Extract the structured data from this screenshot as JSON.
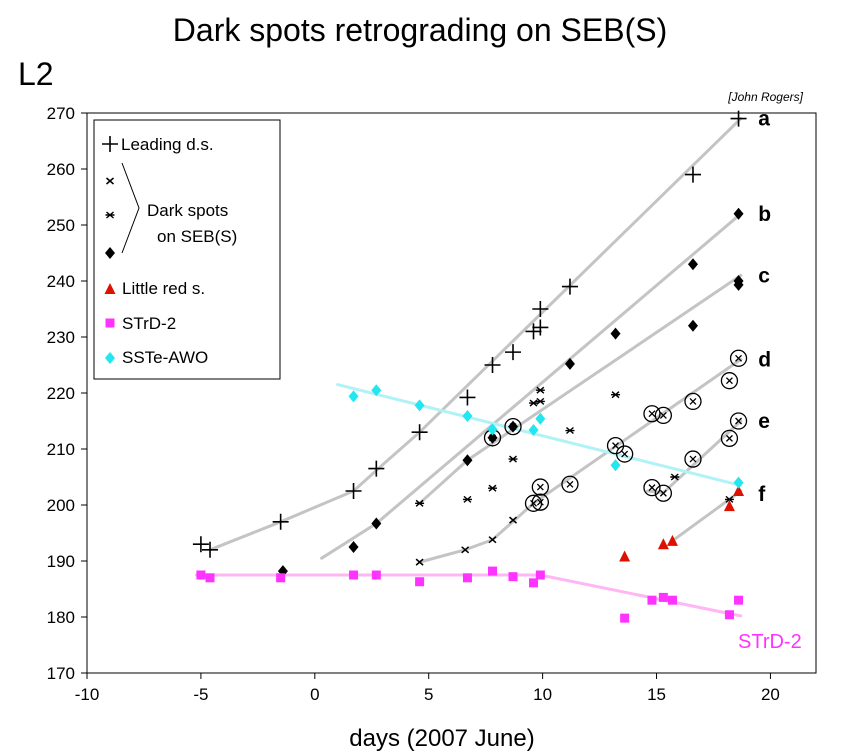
{
  "chart_data": {
    "type": "scatter",
    "title": "Dark spots retrograding on SEB(S)",
    "ylabel_corner": "L2",
    "xlabel": "days (2007 June)",
    "credit": "[John Rogers]",
    "xlim": [
      -10,
      22
    ],
    "ylim": [
      170,
      270
    ],
    "xticks": [
      -10,
      -5,
      0,
      5,
      10,
      15,
      20
    ],
    "yticks": [
      170,
      180,
      190,
      200,
      210,
      220,
      230,
      240,
      250,
      260,
      270
    ],
    "grid": false,
    "legend_position": "top-left",
    "legend": {
      "leading": "Leading d.s.",
      "dark_line1": "Dark spots",
      "dark_line2": "on SEB(S)",
      "little_red": "Little red s.",
      "strd": "STrD-2",
      "sste": "SSTe-AWO"
    },
    "colors": {
      "leading": "#000000",
      "dark": "#000000",
      "little_red": "#dd1100",
      "strd": "#ff33ff",
      "sste": "#22e6f0",
      "trend_gray": "#c4c4c4",
      "trend_pink": "#ffb6f4",
      "trend_cyan": "#b0f2f6"
    },
    "track_labels": [
      {
        "text": "a",
        "x": 19.2,
        "y": 269
      },
      {
        "text": "b",
        "x": 19.2,
        "y": 252
      },
      {
        "text": "c",
        "x": 19.2,
        "y": 241
      },
      {
        "text": "d",
        "x": 19.2,
        "y": 226
      },
      {
        "text": "e",
        "x": 19.2,
        "y": 215
      },
      {
        "text": "f",
        "x": 19.2,
        "y": 202
      }
    ],
    "strd_label": "STrD-2",
    "series": [
      {
        "name": "Leading d.s.",
        "marker": "plus",
        "points": [
          [
            -5,
            193
          ],
          [
            -4.6,
            192
          ],
          [
            -1.5,
            197
          ],
          [
            1.7,
            202.5
          ],
          [
            2.7,
            206.5
          ],
          [
            4.6,
            213
          ],
          [
            6.7,
            219.2
          ],
          [
            7.8,
            225
          ],
          [
            8.7,
            227.3
          ],
          [
            9.6,
            231
          ],
          [
            9.9,
            231.7
          ],
          [
            9.9,
            235
          ],
          [
            11.2,
            239
          ],
          [
            16.6,
            259
          ],
          [
            18.6,
            269
          ]
        ]
      },
      {
        "name": "Dark spots on SEB(S) x",
        "marker": "cross",
        "points": [
          [
            4.6,
            189.8
          ],
          [
            6.6,
            192
          ],
          [
            7.8,
            193.8
          ],
          [
            8.7,
            197.3
          ]
        ]
      },
      {
        "name": "Dark spots on SEB(S) star",
        "marker": "star",
        "points": [
          [
            4.6,
            200.3
          ],
          [
            6.7,
            201
          ],
          [
            7.8,
            203
          ],
          [
            8.7,
            208.2
          ],
          [
            9.6,
            218.2
          ],
          [
            9.9,
            218.5
          ],
          [
            9.9,
            220.5
          ],
          [
            11.2,
            213.3
          ],
          [
            13.2,
            219.7
          ],
          [
            15.8,
            205
          ],
          [
            15.7,
            183
          ],
          [
            18.2,
            201
          ]
        ]
      },
      {
        "name": "Dark spots on SEB(S) diamond",
        "marker": "diamond",
        "points": [
          [
            -1.4,
            188.2
          ],
          [
            1.7,
            192.5
          ],
          [
            2.7,
            196.7
          ],
          [
            6.7,
            208
          ],
          [
            7.8,
            212
          ],
          [
            8.7,
            214
          ],
          [
            11.2,
            225.2
          ],
          [
            13.2,
            230.6
          ],
          [
            16.6,
            232
          ],
          [
            16.6,
            243
          ],
          [
            18.6,
            239.3
          ],
          [
            18.6,
            240
          ],
          [
            18.6,
            252
          ]
        ]
      },
      {
        "name": "Circled spots",
        "marker": "circled",
        "points": [
          [
            7.8,
            212
          ],
          [
            8.7,
            214
          ],
          [
            9.6,
            200.3
          ],
          [
            9.9,
            200.5
          ],
          [
            9.9,
            203.2
          ],
          [
            11.2,
            203.7
          ],
          [
            13.2,
            210.6
          ],
          [
            13.6,
            209.1
          ],
          [
            14.8,
            216.3
          ],
          [
            15.3,
            216
          ],
          [
            14.8,
            203.1
          ],
          [
            15.3,
            202.1
          ],
          [
            16.6,
            218.5
          ],
          [
            16.6,
            208.2
          ],
          [
            18.2,
            222.2
          ],
          [
            18.6,
            226.2
          ],
          [
            18.2,
            211.9
          ],
          [
            18.6,
            215
          ]
        ]
      },
      {
        "name": "Little red s.",
        "marker": "triangle",
        "points": [
          [
            13.6,
            190.8
          ],
          [
            15.3,
            193
          ],
          [
            15.7,
            193.6
          ],
          [
            18.2,
            199.8
          ],
          [
            18.6,
            202.5
          ]
        ]
      },
      {
        "name": "STrD-2",
        "marker": "square",
        "points": [
          [
            -5,
            187.5
          ],
          [
            -4.6,
            187
          ],
          [
            -1.5,
            187
          ],
          [
            1.7,
            187.5
          ],
          [
            2.7,
            187.5
          ],
          [
            4.6,
            186.3
          ],
          [
            6.7,
            187
          ],
          [
            7.8,
            188.2
          ],
          [
            8.7,
            187.2
          ],
          [
            9.6,
            186.1
          ],
          [
            9.9,
            187.5
          ],
          [
            13.6,
            179.8
          ],
          [
            14.8,
            183
          ],
          [
            15.3,
            183.5
          ],
          [
            15.7,
            183
          ],
          [
            18.2,
            180.4
          ],
          [
            18.6,
            183
          ]
        ]
      },
      {
        "name": "SSTe-AWO",
        "marker": "diamond-small",
        "points": [
          [
            1.7,
            219.4
          ],
          [
            2.7,
            220.5
          ],
          [
            4.6,
            217.8
          ],
          [
            6.7,
            215.9
          ],
          [
            7.8,
            213.5
          ],
          [
            9.6,
            213.4
          ],
          [
            9.9,
            215.4
          ],
          [
            13.2,
            207.1
          ],
          [
            18.6,
            204
          ]
        ]
      }
    ],
    "trend_lines": [
      {
        "id": "a",
        "style": "gray",
        "points": [
          [
            -4.6,
            192
          ],
          [
            -1.5,
            197
          ],
          [
            1.7,
            202.5
          ],
          [
            3.2,
            208
          ],
          [
            4.6,
            213
          ],
          [
            18.7,
            269
          ]
        ]
      },
      {
        "id": "b",
        "style": "gray",
        "points": [
          [
            0.3,
            190.5
          ],
          [
            2.7,
            196.7
          ],
          [
            18.7,
            252
          ]
        ]
      },
      {
        "id": "c",
        "style": "gray",
        "points": [
          [
            4.6,
            200.3
          ],
          [
            6.7,
            208
          ],
          [
            18.7,
            241
          ]
        ]
      },
      {
        "id": "d",
        "style": "gray",
        "points": [
          [
            4.6,
            189.8
          ],
          [
            6.6,
            192
          ],
          [
            7.8,
            193.8
          ],
          [
            9.6,
            200.3
          ],
          [
            18.7,
            226
          ]
        ]
      },
      {
        "id": "e",
        "style": "gray",
        "points": [
          [
            14.6,
            202.5
          ],
          [
            15.3,
            202.2
          ],
          [
            18.7,
            215
          ]
        ]
      },
      {
        "id": "f",
        "style": "gray",
        "points": [
          [
            15.7,
            193.6
          ],
          [
            18.7,
            202.5
          ]
        ]
      },
      {
        "id": "strd",
        "style": "pink",
        "points": [
          [
            -5.2,
            187.5
          ],
          [
            9.9,
            187.5
          ],
          [
            18.7,
            180.2
          ]
        ]
      },
      {
        "id": "sste",
        "style": "cyan",
        "points": [
          [
            1,
            221.5
          ],
          [
            18.7,
            203.5
          ]
        ]
      }
    ]
  }
}
